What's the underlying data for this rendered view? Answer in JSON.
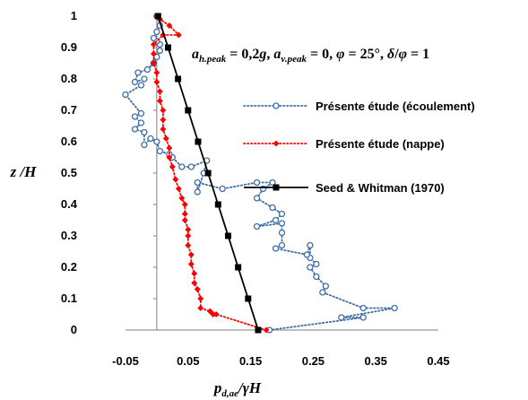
{
  "chart_data": {
    "type": "line",
    "xlim": [
      -0.05,
      0.45
    ],
    "ylim": [
      0,
      1
    ],
    "xticks": [
      "-0.05",
      "0.05",
      "0.15",
      "0.25",
      "0.35",
      "0.45"
    ],
    "yticks": [
      "0",
      "0.1",
      "0.2",
      "0.3",
      "0.4",
      "0.5",
      "0.6",
      "0.7",
      "0.8",
      "0.9",
      "1"
    ],
    "xlabel": {
      "base": "p",
      "sub": "d,ae",
      "rest": "/γH"
    },
    "ylabel": {
      "base": "z",
      "rest": " /H"
    },
    "grid": false,
    "legend_position": "right",
    "annotation": {
      "ah": "a",
      "ah_sub": "h.peak",
      "ah_val": " = 0,2",
      "g": "g",
      "sep1": ", ",
      "av": "a",
      "av_sub": "v.peak",
      "av_val": " = 0, ",
      "phi": "φ",
      "phi_val": " = 25°, ",
      "delta": "δ",
      "slash": "/",
      "phi2": "φ",
      "end": " = 1"
    },
    "series": [
      {
        "name": "Présente étude (écoulement)",
        "color": "#3f6fa6",
        "marker": "circle",
        "line": "dotted",
        "points": [
          [
            0.18,
            0
          ],
          [
            0.33,
            0.04
          ],
          [
            0.295,
            0.04
          ],
          [
            0.38,
            0.07
          ],
          [
            0.33,
            0.07
          ],
          [
            0.265,
            0.12
          ],
          [
            0.27,
            0.14
          ],
          [
            0.255,
            0.17
          ],
          [
            0.245,
            0.2
          ],
          [
            0.255,
            0.21
          ],
          [
            0.245,
            0.23
          ],
          [
            0.245,
            0.27
          ],
          [
            0.24,
            0.24
          ],
          [
            0.19,
            0.26
          ],
          [
            0.2,
            0.27
          ],
          [
            0.2,
            0.31
          ],
          [
            0.2,
            0.34
          ],
          [
            0.16,
            0.33
          ],
          [
            0.19,
            0.35
          ],
          [
            0.2,
            0.37
          ],
          [
            0.185,
            0.39
          ],
          [
            0.16,
            0.42
          ],
          [
            0.17,
            0.45
          ],
          [
            0.185,
            0.47
          ],
          [
            0.16,
            0.47
          ],
          [
            0.105,
            0.45
          ],
          [
            0.065,
            0.47
          ],
          [
            0.065,
            0.44
          ],
          [
            0.075,
            0.5
          ],
          [
            0.08,
            0.54
          ],
          [
            0.055,
            0.52
          ],
          [
            0.04,
            0.52
          ],
          [
            0.025,
            0.55
          ],
          [
            0.02,
            0.56
          ],
          [
            0.005,
            0.57
          ],
          [
            0.0,
            0.6
          ],
          [
            -0.01,
            0.61
          ],
          [
            -0.02,
            0.59
          ],
          [
            -0.02,
            0.63
          ],
          [
            -0.035,
            0.64
          ],
          [
            -0.025,
            0.66
          ],
          [
            -0.035,
            0.68
          ],
          [
            -0.025,
            0.69
          ],
          [
            -0.05,
            0.75
          ],
          [
            -0.025,
            0.78
          ],
          [
            -0.02,
            0.8
          ],
          [
            -0.035,
            0.79
          ],
          [
            -0.03,
            0.82
          ],
          [
            -0.015,
            0.83
          ],
          [
            -0.005,
            0.85
          ],
          [
            0.0,
            0.87
          ],
          [
            0.005,
            0.89
          ],
          [
            0.005,
            0.91
          ],
          [
            0.0,
            0.92
          ],
          [
            -0.005,
            0.93
          ],
          [
            0.0,
            0.95
          ],
          [
            0.005,
            0.97
          ],
          [
            0.0,
            1.0
          ]
        ]
      },
      {
        "name": "Présente étude (nappe)",
        "color": "#ff0000",
        "marker": "diamond",
        "line": "dotted",
        "points": [
          [
            0.175,
            0
          ],
          [
            0.095,
            0.05
          ],
          [
            0.09,
            0.05
          ],
          [
            0.085,
            0.06
          ],
          [
            0.07,
            0.07
          ],
          [
            0.07,
            0.1
          ],
          [
            0.065,
            0.13
          ],
          [
            0.06,
            0.15
          ],
          [
            0.06,
            0.18
          ],
          [
            0.055,
            0.21
          ],
          [
            0.055,
            0.24
          ],
          [
            0.05,
            0.27
          ],
          [
            0.05,
            0.3
          ],
          [
            0.05,
            0.32
          ],
          [
            0.045,
            0.35
          ],
          [
            0.045,
            0.37
          ],
          [
            0.045,
            0.4
          ],
          [
            0.04,
            0.42
          ],
          [
            0.035,
            0.45
          ],
          [
            0.03,
            0.48
          ],
          [
            0.025,
            0.52
          ],
          [
            0.02,
            0.55
          ],
          [
            0.02,
            0.58
          ],
          [
            0.015,
            0.61
          ],
          [
            0.01,
            0.64
          ],
          [
            0.01,
            0.67
          ],
          [
            0.01,
            0.7
          ],
          [
            0.005,
            0.73
          ],
          [
            0.005,
            0.76
          ],
          [
            0.0,
            0.79
          ],
          [
            0.0,
            0.82
          ],
          [
            -0.005,
            0.85
          ],
          [
            -0.005,
            0.88
          ],
          [
            -0.005,
            0.91
          ],
          [
            0.01,
            0.94
          ],
          [
            0.035,
            0.94
          ],
          [
            0.02,
            0.97
          ],
          [
            0.005,
            0.99
          ],
          [
            0.0,
            1.0
          ]
        ]
      },
      {
        "name": "Seed & Whitman (1970)",
        "color": "#000000",
        "marker": "square",
        "line": "solid",
        "points": [
          [
            0.162,
            0
          ],
          [
            0.146,
            0.1
          ],
          [
            0.13,
            0.2
          ],
          [
            0.114,
            0.3
          ],
          [
            0.098,
            0.4
          ],
          [
            0.082,
            0.5
          ],
          [
            0.066,
            0.6
          ],
          [
            0.05,
            0.7
          ],
          [
            0.034,
            0.8
          ],
          [
            0.018,
            0.9
          ],
          [
            0.002,
            1.0
          ]
        ]
      }
    ]
  }
}
